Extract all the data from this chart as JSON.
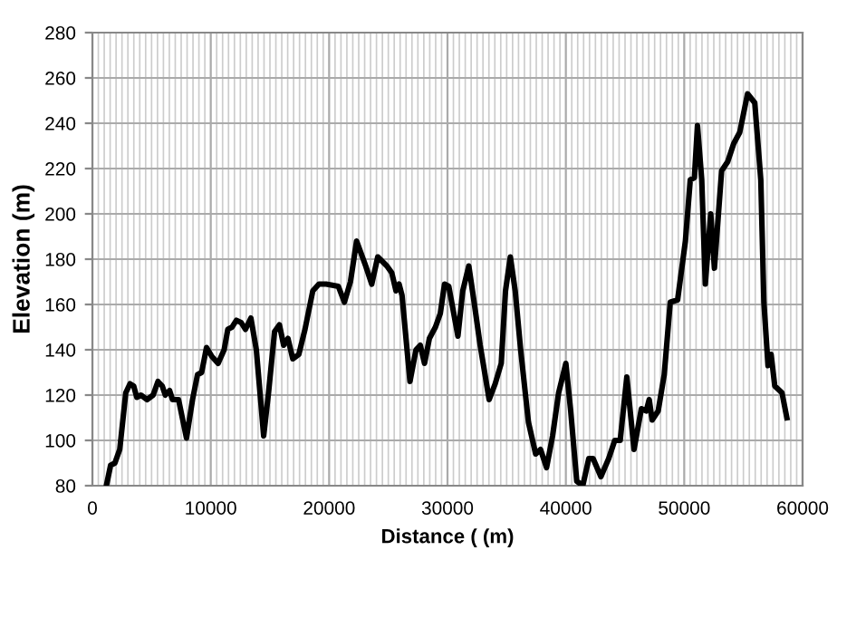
{
  "chart_data": {
    "type": "line",
    "xlabel": "Distance ( (m)",
    "ylabel": "Elevation (m)",
    "xlim": [
      0,
      60000
    ],
    "ylim": [
      80,
      280
    ],
    "xticks": [
      0,
      {
        "value": 500,
        "label": null
      },
      {
        "value": 1000,
        "label": null
      },
      {
        "value": 1500,
        "label": null
      },
      {
        "value": 2000,
        "label": null
      },
      {
        "value": 2500,
        "label": null
      },
      {
        "value": 3000,
        "label": null
      },
      {
        "value": 3500,
        "label": null
      },
      {
        "value": 4000,
        "label": null
      },
      {
        "value": 4500,
        "label": null
      },
      {
        "value": 5000,
        "label": null
      },
      {
        "value": 5500,
        "label": null
      },
      {
        "value": 6000,
        "label": null
      },
      {
        "value": 6500,
        "label": null
      },
      {
        "value": 7000,
        "label": null
      },
      {
        "value": 7500,
        "label": null
      },
      {
        "value": 8000,
        "label": null
      },
      {
        "value": 8500,
        "label": null
      },
      {
        "value": 9000,
        "label": null
      },
      {
        "value": 9500,
        "label": null
      },
      10000,
      {
        "value": 10500,
        "label": null
      },
      {
        "value": 11000,
        "label": null
      },
      {
        "value": 11500,
        "label": null
      },
      {
        "value": 12000,
        "label": null
      },
      {
        "value": 12500,
        "label": null
      },
      {
        "value": 13000,
        "label": null
      },
      {
        "value": 13500,
        "label": null
      },
      {
        "value": 14000,
        "label": null
      },
      {
        "value": 14500,
        "label": null
      },
      {
        "value": 15000,
        "label": null
      },
      {
        "value": 15500,
        "label": null
      },
      {
        "value": 16000,
        "label": null
      },
      {
        "value": 16500,
        "label": null
      },
      {
        "value": 17000,
        "label": null
      },
      {
        "value": 17500,
        "label": null
      },
      {
        "value": 18000,
        "label": null
      },
      {
        "value": 18500,
        "label": null
      },
      {
        "value": 19000,
        "label": null
      },
      {
        "value": 19500,
        "label": null
      },
      20000,
      {
        "value": 20500,
        "label": null
      },
      {
        "value": 21000,
        "label": null
      },
      {
        "value": 21500,
        "label": null
      },
      {
        "value": 22000,
        "label": null
      },
      {
        "value": 22500,
        "label": null
      },
      {
        "value": 23000,
        "label": null
      },
      {
        "value": 23500,
        "label": null
      },
      {
        "value": 24000,
        "label": null
      },
      {
        "value": 24500,
        "label": null
      },
      {
        "value": 25000,
        "label": null
      },
      {
        "value": 25500,
        "label": null
      },
      {
        "value": 26000,
        "label": null
      },
      {
        "value": 26500,
        "label": null
      },
      {
        "value": 27000,
        "label": null
      },
      {
        "value": 27500,
        "label": null
      },
      {
        "value": 28000,
        "label": null
      },
      {
        "value": 28500,
        "label": null
      },
      {
        "value": 29000,
        "label": null
      },
      {
        "value": 29500,
        "label": null
      },
      30000,
      {
        "value": 30500,
        "label": null
      },
      {
        "value": 31000,
        "label": null
      },
      {
        "value": 31500,
        "label": null
      },
      {
        "value": 32000,
        "label": null
      },
      {
        "value": 32500,
        "label": null
      },
      {
        "value": 33000,
        "label": null
      },
      {
        "value": 33500,
        "label": null
      },
      {
        "value": 34000,
        "label": null
      },
      {
        "value": 34500,
        "label": null
      },
      {
        "value": 35000,
        "label": null
      },
      {
        "value": 35500,
        "label": null
      },
      {
        "value": 36000,
        "label": null
      },
      {
        "value": 36500,
        "label": null
      },
      {
        "value": 37000,
        "label": null
      },
      {
        "value": 37500,
        "label": null
      },
      {
        "value": 38000,
        "label": null
      },
      {
        "value": 38500,
        "label": null
      },
      {
        "value": 39000,
        "label": null
      },
      {
        "value": 39500,
        "label": null
      },
      40000,
      {
        "value": 40500,
        "label": null
      },
      {
        "value": 41000,
        "label": null
      },
      {
        "value": 41500,
        "label": null
      },
      {
        "value": 42000,
        "label": null
      },
      {
        "value": 42500,
        "label": null
      },
      {
        "value": 43000,
        "label": null
      },
      {
        "value": 43500,
        "label": null
      },
      {
        "value": 44000,
        "label": null
      },
      {
        "value": 44500,
        "label": null
      },
      {
        "value": 45000,
        "label": null
      },
      {
        "value": 45500,
        "label": null
      },
      {
        "value": 46000,
        "label": null
      },
      {
        "value": 46500,
        "label": null
      },
      {
        "value": 47000,
        "label": null
      },
      {
        "value": 47500,
        "label": null
      },
      {
        "value": 48000,
        "label": null
      },
      {
        "value": 48500,
        "label": null
      },
      {
        "value": 49000,
        "label": null
      },
      {
        "value": 49500,
        "label": null
      },
      50000,
      {
        "value": 50500,
        "label": null
      },
      {
        "value": 51000,
        "label": null
      },
      {
        "value": 51500,
        "label": null
      },
      {
        "value": 52000,
        "label": null
      },
      {
        "value": 52500,
        "label": null
      },
      {
        "value": 53000,
        "label": null
      },
      {
        "value": 53500,
        "label": null
      },
      {
        "value": 54000,
        "label": null
      },
      {
        "value": 54500,
        "label": null
      },
      {
        "value": 55000,
        "label": null
      },
      {
        "value": 55500,
        "label": null
      },
      {
        "value": 56000,
        "label": null
      },
      {
        "value": 56500,
        "label": null
      },
      {
        "value": 57000,
        "label": null
      },
      {
        "value": 57500,
        "label": null
      },
      {
        "value": 58000,
        "label": null
      },
      {
        "value": 58500,
        "label": null
      },
      {
        "value": 59000,
        "label": null
      },
      {
        "value": 59500,
        "label": null
      },
      60000
    ],
    "yticks": [
      80,
      100,
      120,
      140,
      160,
      180,
      200,
      220,
      240,
      260,
      280
    ],
    "grid": true,
    "marker": "none",
    "line_style": "solid",
    "series": [
      {
        "color": "#000000",
        "x": [
          1180,
          1540,
          1900,
          2310,
          2820,
          3180,
          3490,
          3750,
          4100,
          4620,
          5130,
          5540,
          5900,
          6160,
          6520,
          6770,
          7280,
          7950,
          8460,
          8880,
          9230,
          9640,
          10100,
          10620,
          11130,
          11440,
          11800,
          12160,
          12570,
          12930,
          13390,
          13850,
          14470,
          14880,
          15390,
          15800,
          16160,
          16520,
          16930,
          17440,
          17960,
          18620,
          19140,
          19750,
          20780,
          21290,
          21800,
          22320,
          23090,
          23600,
          24110,
          24880,
          25290,
          25650,
          25910,
          26160,
          26830,
          27340,
          27700,
          28060,
          28470,
          28980,
          29390,
          29750,
          30110,
          30880,
          31290,
          31800,
          32250,
          32760,
          33520,
          34030,
          34540,
          34900,
          35310,
          35720,
          36180,
          36840,
          37450,
          37860,
          38370,
          38880,
          39390,
          40000,
          40410,
          40920,
          41430,
          41940,
          42300,
          42960,
          43620,
          44130,
          44590,
          45150,
          45760,
          46380,
          46790,
          47040,
          47290,
          47800,
          48310,
          48820,
          49440,
          50100,
          50510,
          50860,
          51120,
          51480,
          51780,
          52240,
          52550,
          53160,
          53670,
          54180,
          54690,
          55350,
          55960,
          56470,
          56730,
          57080,
          57340,
          57650,
          58260,
          58670
        ],
        "values": [
          80,
          89,
          90,
          96,
          121,
          125,
          124,
          119,
          120,
          118,
          120,
          126,
          124,
          120,
          122,
          118,
          118,
          101,
          118,
          129,
          130,
          141,
          137,
          134,
          140,
          149,
          150,
          153,
          152,
          149,
          154,
          140,
          102,
          121,
          148,
          151,
          142,
          145,
          136,
          138,
          149,
          166,
          169,
          169,
          168,
          161,
          170,
          188,
          177,
          169,
          181,
          177,
          174,
          166,
          169,
          164,
          126,
          140,
          142,
          134,
          145,
          150,
          156,
          169,
          168,
          146,
          166,
          177,
          161,
          142,
          118,
          125,
          134,
          166,
          181,
          166,
          140,
          108,
          94,
          96,
          88,
          102,
          121,
          134,
          113,
          82,
          80,
          92,
          92,
          84,
          92,
          100,
          100,
          128,
          96,
          114,
          113,
          118,
          109,
          113,
          129,
          161,
          162,
          188,
          215,
          216,
          239,
          215,
          169,
          200,
          176,
          219,
          223,
          231,
          236,
          253,
          249,
          215,
          161,
          133,
          138,
          124,
          121,
          110
        ]
      }
    ]
  }
}
